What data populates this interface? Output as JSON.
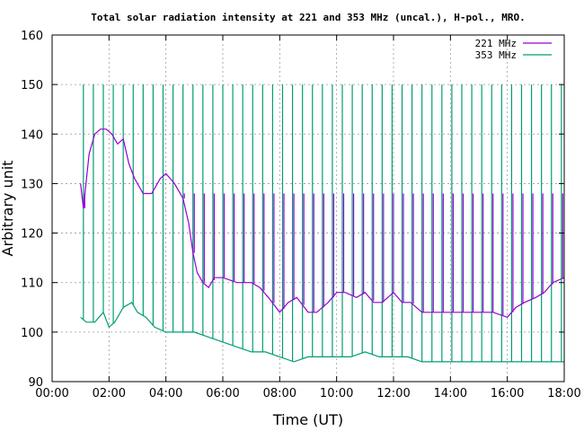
{
  "chart_data": {
    "type": "line",
    "title": "Total solar radiation intensity at 221 and 353 MHz (uncal.), H-pol., MRO.",
    "xlabel": "Time (UT)",
    "ylabel": "Arbitrary unit",
    "xlim": [
      0,
      18
    ],
    "ylim": [
      90,
      160
    ],
    "x_ticks": [
      "00:00",
      "02:00",
      "04:00",
      "06:00",
      "08:00",
      "10:00",
      "12:00",
      "14:00",
      "16:00",
      "18:00"
    ],
    "y_ticks": [
      90,
      100,
      110,
      120,
      130,
      140,
      150,
      160
    ],
    "grid": true,
    "legend_position": "top-right",
    "series": [
      {
        "name": "221 MHz",
        "color": "#9400d3",
        "x": [
          1.0,
          1.1,
          1.3,
          1.5,
          1.7,
          1.9,
          2.1,
          2.3,
          2.5,
          2.7,
          2.9,
          3.2,
          3.5,
          3.8,
          4.0,
          4.3,
          4.6,
          4.8,
          4.95,
          5.1,
          5.3,
          5.5,
          5.7,
          6.0,
          6.5,
          7.0,
          7.3,
          7.6,
          8.0,
          8.3,
          8.6,
          9.0,
          9.3,
          9.7,
          10.0,
          10.3,
          10.7,
          11.0,
          11.3,
          11.6,
          12.0,
          12.3,
          12.6,
          13.0,
          13.4,
          13.8,
          14.2,
          14.6,
          15.0,
          15.5,
          16.0,
          16.3,
          16.6,
          17.0,
          17.3,
          17.6,
          18.0
        ],
        "values": [
          130,
          125,
          136,
          140,
          141,
          141,
          140,
          138,
          139,
          134,
          131,
          128,
          128,
          131,
          132,
          130,
          127,
          122,
          116,
          112,
          110,
          109,
          111,
          111,
          110,
          110,
          109,
          107,
          104,
          106,
          107,
          104,
          104,
          106,
          108,
          108,
          107,
          108,
          106,
          106,
          108,
          106,
          106,
          104,
          104,
          104,
          104,
          104,
          104,
          104,
          103,
          105,
          106,
          107,
          108,
          110,
          111
        ]
      },
      {
        "name": "353 MHz",
        "color": "#009e73",
        "x": [
          1.0,
          1.2,
          1.5,
          1.8,
          2.0,
          2.2,
          2.5,
          2.8,
          3.0,
          3.3,
          3.6,
          4.0,
          4.5,
          5.0,
          5.5,
          6.0,
          6.5,
          7.0,
          7.5,
          8.0,
          8.5,
          9.0,
          9.5,
          10.0,
          10.5,
          11.0,
          11.5,
          12.0,
          12.5,
          13.0,
          13.5,
          14.0,
          14.5,
          15.0,
          15.5,
          16.0,
          16.5,
          17.0,
          17.5,
          18.0
        ],
        "values": [
          103,
          102,
          102,
          104,
          101,
          102,
          105,
          106,
          104,
          103,
          101,
          100,
          100,
          100,
          99,
          98,
          97,
          96,
          96,
          95,
          94,
          95,
          95,
          95,
          95,
          96,
          95,
          95,
          95,
          94,
          94,
          94,
          94,
          94,
          94,
          94,
          94,
          94,
          94,
          94
        ]
      }
    ],
    "calibration_spikes": {
      "x": [
        1.1,
        1.45,
        1.8,
        2.15,
        2.5,
        2.85,
        3.2,
        3.55,
        3.9,
        4.25,
        4.6,
        4.95,
        5.3,
        5.65,
        6.0,
        6.35,
        6.7,
        7.05,
        7.4,
        7.75,
        8.1,
        8.45,
        8.8,
        9.15,
        9.5,
        9.85,
        10.2,
        10.55,
        10.9,
        11.25,
        11.6,
        11.95,
        12.3,
        12.65,
        13.0,
        13.35,
        13.7,
        14.05,
        14.4,
        14.75,
        15.1,
        15.45,
        15.8,
        16.15,
        16.5,
        16.85,
        17.2,
        17.55,
        17.9
      ],
      "peak_353": 150,
      "peak_221": 128
    }
  }
}
